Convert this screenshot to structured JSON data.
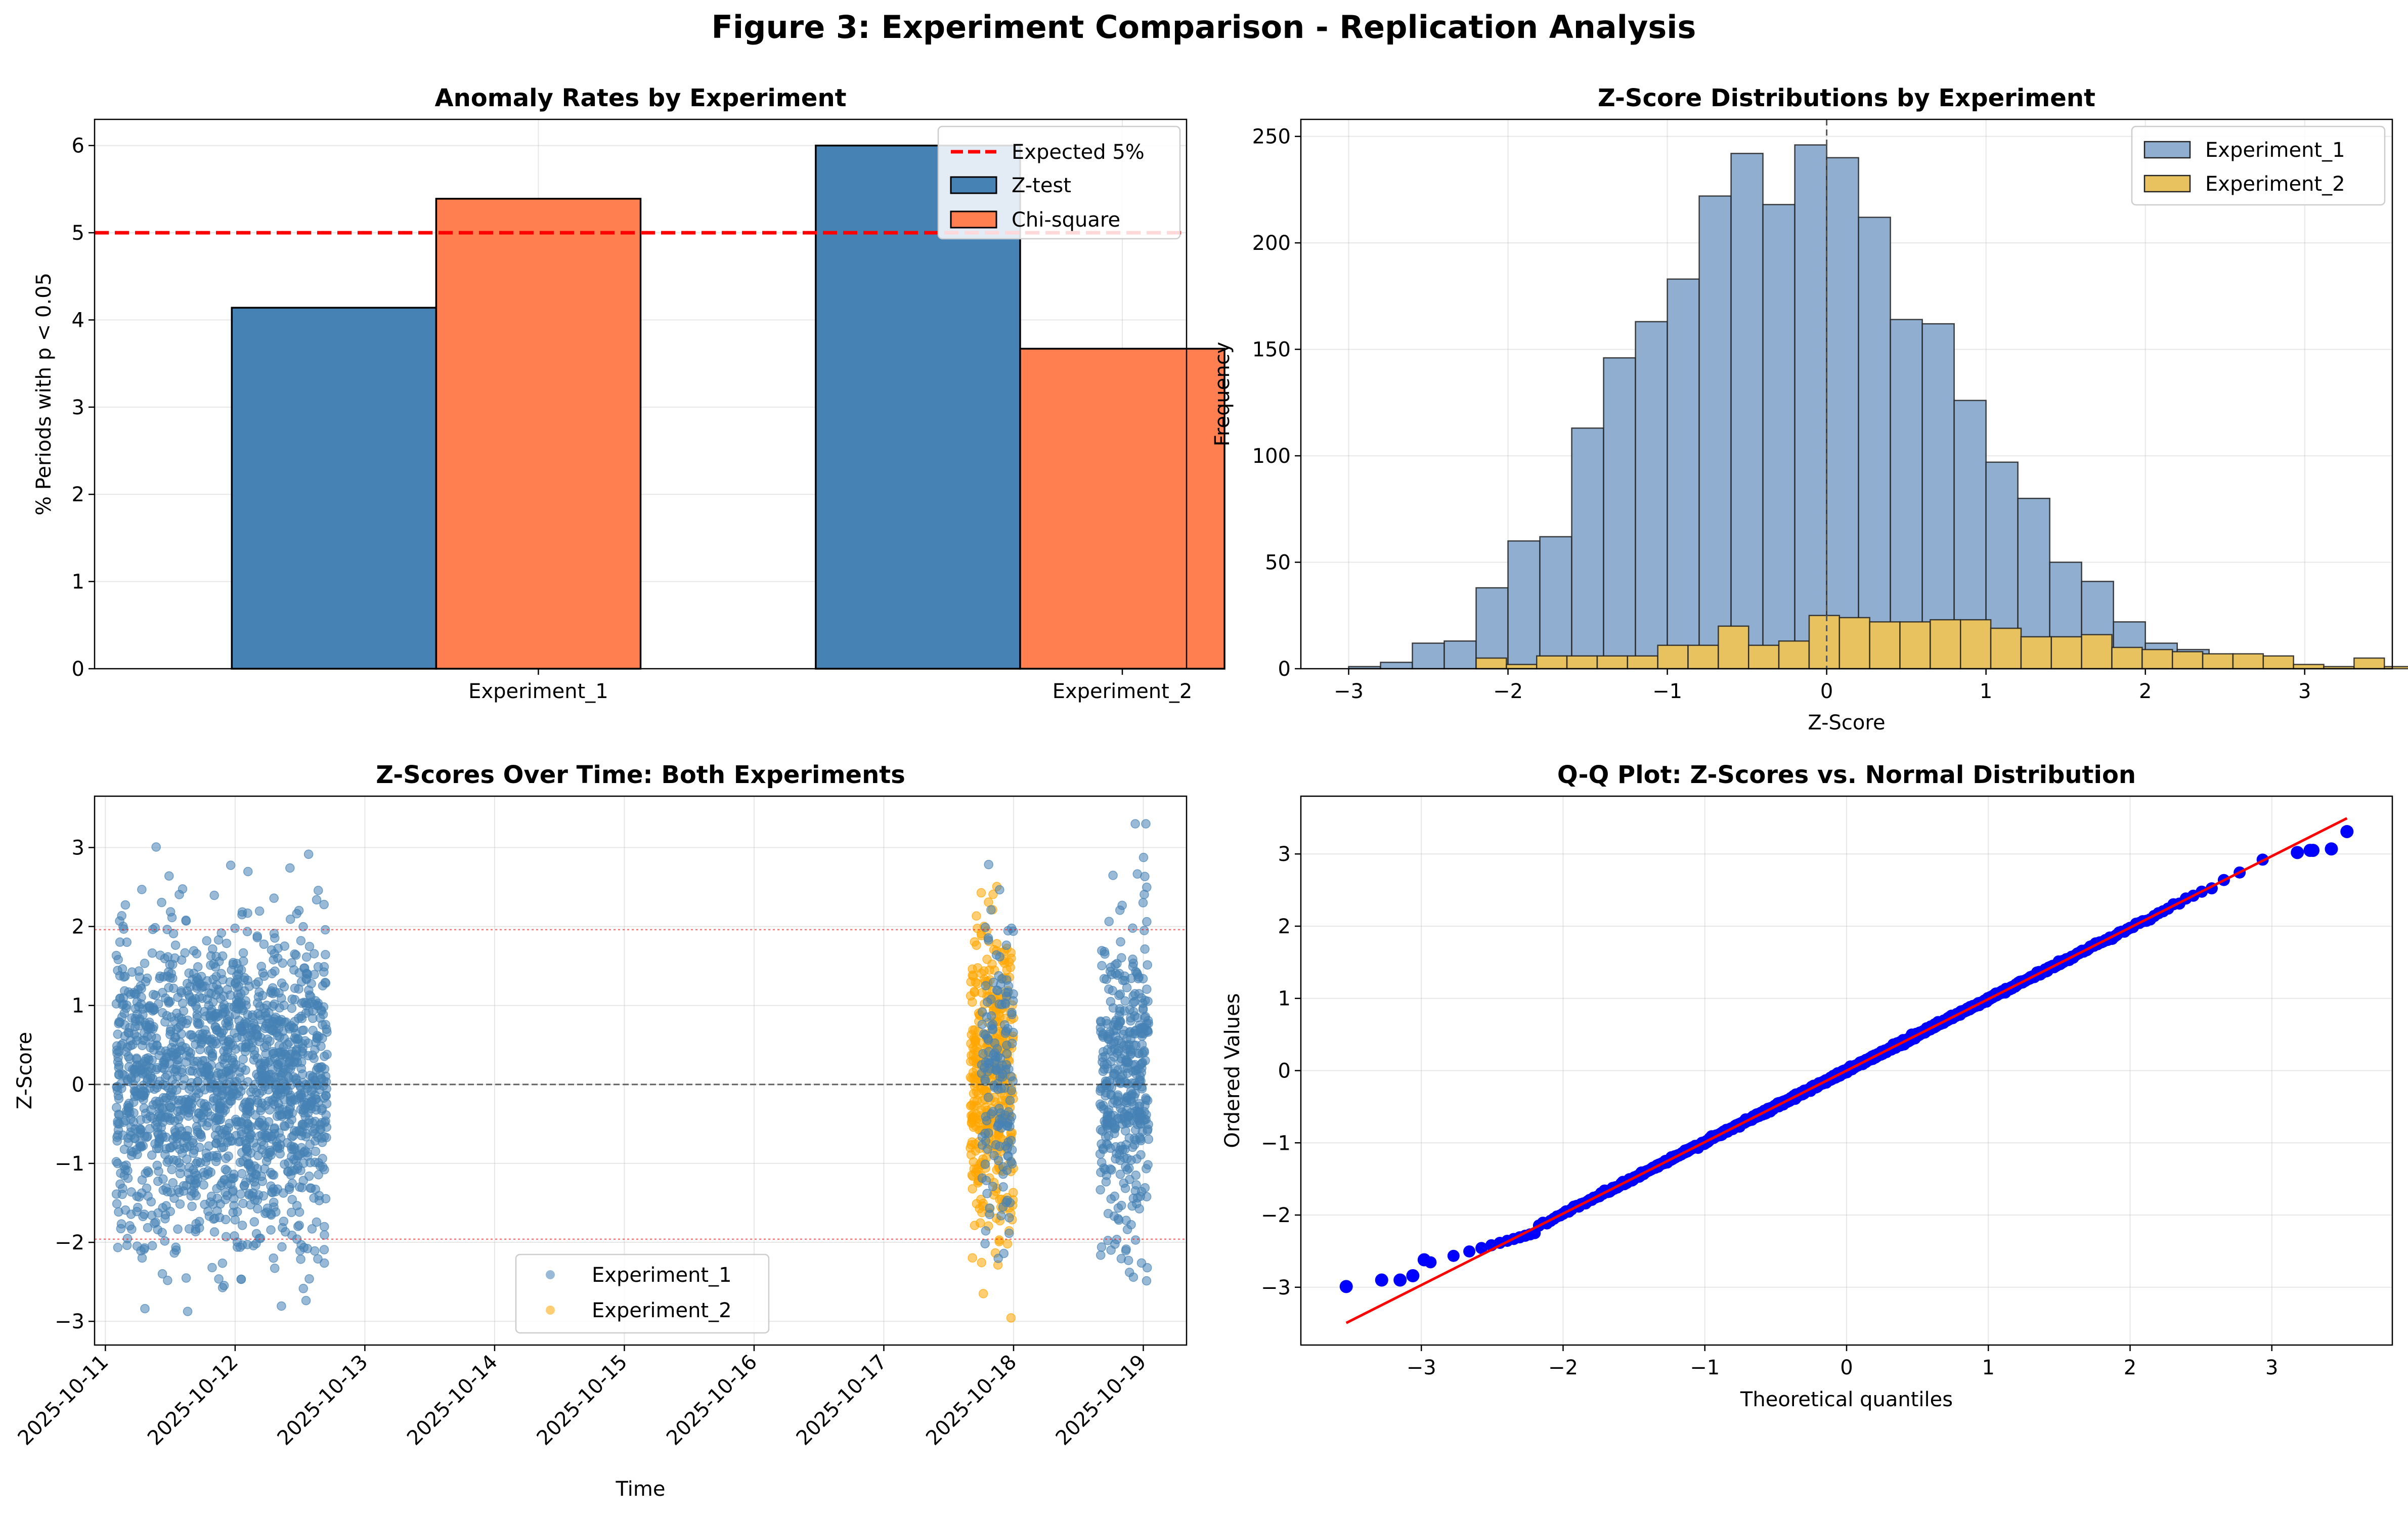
{
  "figure_title": "Figure 3: Experiment Comparison - Replication Analysis",
  "colors": {
    "z_test": "#4682b4",
    "chi_square": "#ff7f50",
    "experiment_1": "#4682b4",
    "experiment_2": "#ffa500",
    "expected_line": "#ff0000",
    "qq_points": "#0000ff",
    "qq_line": "#ff0000"
  },
  "chart_data": [
    {
      "type": "bar",
      "title": "Anomaly Rates by Experiment",
      "xlabel": "",
      "ylabel": "% Periods with p < 0.05",
      "categories": [
        "Experiment_1",
        "Experiment_2"
      ],
      "series": [
        {
          "name": "Z-test",
          "values": [
            4.14,
            6.0
          ]
        },
        {
          "name": "Chi-square",
          "values": [
            5.39,
            3.67
          ]
        }
      ],
      "reference_line": {
        "name": "Expected 5%",
        "value": 5
      },
      "ylim": [
        0,
        6.3
      ],
      "yticks": [
        "0",
        "1",
        "2",
        "3",
        "4",
        "5",
        "6"
      ],
      "grid": true,
      "legend": "top-right"
    },
    {
      "type": "bar",
      "subtype": "histogram",
      "title": "Z-Score Distributions by Experiment",
      "xlabel": "Z-Score",
      "ylabel": "Frequency",
      "xlim": [
        -3.3,
        3.55
      ],
      "ylim": [
        0,
        258
      ],
      "xticks": [
        "−3",
        "−2",
        "−1",
        "0",
        "1",
        "2",
        "3"
      ],
      "yticks": [
        "0",
        "50",
        "100",
        "150",
        "200",
        "250"
      ],
      "grid": true,
      "legend": "top-right",
      "reference_line": {
        "x": 0
      },
      "series": [
        {
          "name": "Experiment_1",
          "bins_start": -3.0,
          "bin_width": 0.2,
          "values": [
            1,
            3,
            12,
            13,
            38,
            60,
            62,
            113,
            146,
            163,
            183,
            222,
            242,
            218,
            246,
            240,
            212,
            164,
            162,
            126,
            97,
            80,
            50,
            41,
            22,
            12,
            9,
            3,
            4,
            1
          ]
        },
        {
          "name": "Experiment_2",
          "bins_start": -2.2,
          "bin_width": 0.19,
          "values": [
            5,
            2,
            6,
            6,
            6,
            6,
            11,
            11,
            20,
            11,
            13,
            25,
            24,
            22,
            22,
            23,
            23,
            19,
            15,
            15,
            16,
            10,
            9,
            8,
            7,
            7,
            6,
            2,
            1,
            5,
            1
          ]
        }
      ]
    },
    {
      "type": "scatter",
      "title": "Z-Scores Over Time: Both Experiments",
      "xlabel": "Time",
      "ylabel": "Z-Score",
      "x_start": "2025-10-11",
      "xticks": [
        "2025-10-11",
        "2025-10-12",
        "2025-10-13",
        "2025-10-14",
        "2025-10-15",
        "2025-10-16",
        "2025-10-17",
        "2025-10-18",
        "2025-10-19"
      ],
      "xlim": [
        "2025-10-10 22:00",
        "2025-10-19 08:00"
      ],
      "ylim": [
        -3.3,
        3.65
      ],
      "yticks": [
        "−3",
        "−2",
        "−1",
        "0",
        "1",
        "2",
        "3"
      ],
      "threshold_lines": [
        1.96,
        -1.96
      ],
      "zero_line": 0,
      "grid": true,
      "legend": "lower-center",
      "series": [
        {
          "name": "Experiment_1",
          "clusters": [
            {
              "start": "2025-10-11 02:00",
              "end": "2025-10-12 17:00",
              "n": 1700
            },
            {
              "start": "2025-10-18 16:00",
              "end": "2025-10-19 01:00",
              "n": 420
            },
            {
              "start": "2025-10-17 18:00",
              "end": "2025-10-18 00:00",
              "n": 160
            }
          ]
        },
        {
          "name": "Experiment_2",
          "clusters": [
            {
              "start": "2025-10-17 16:00",
              "end": "2025-10-18 00:00",
              "n": 400
            }
          ]
        }
      ]
    },
    {
      "type": "scatter",
      "subtype": "qq",
      "title": "Q-Q Plot: Z-Scores vs. Normal Distribution",
      "xlabel": "Theoretical quantiles",
      "ylabel": "Ordered Values",
      "xlim": [
        -3.85,
        3.85
      ],
      "ylim": [
        -3.8,
        3.8
      ],
      "xticks": [
        "−3",
        "−2",
        "−1",
        "0",
        "1",
        "2",
        "3"
      ],
      "yticks": [
        "−3",
        "−2",
        "−1",
        "0",
        "1",
        "2",
        "3"
      ],
      "grid": true,
      "fit_line": {
        "slope": 0.99,
        "intercept": 0.0,
        "x_range": [
          -3.53,
          3.53
        ]
      },
      "tail_points": [
        [
          -3.53,
          -2.99
        ],
        [
          -3.28,
          -2.9
        ],
        [
          -3.15,
          -2.9
        ],
        [
          -3.06,
          -2.84
        ],
        [
          -2.98,
          -2.62
        ],
        [
          3.27,
          3.05
        ],
        [
          3.29,
          3.05
        ],
        [
          3.53,
          3.31
        ],
        [
          3.42,
          3.07
        ],
        [
          3.18,
          3.02
        ]
      ]
    }
  ]
}
